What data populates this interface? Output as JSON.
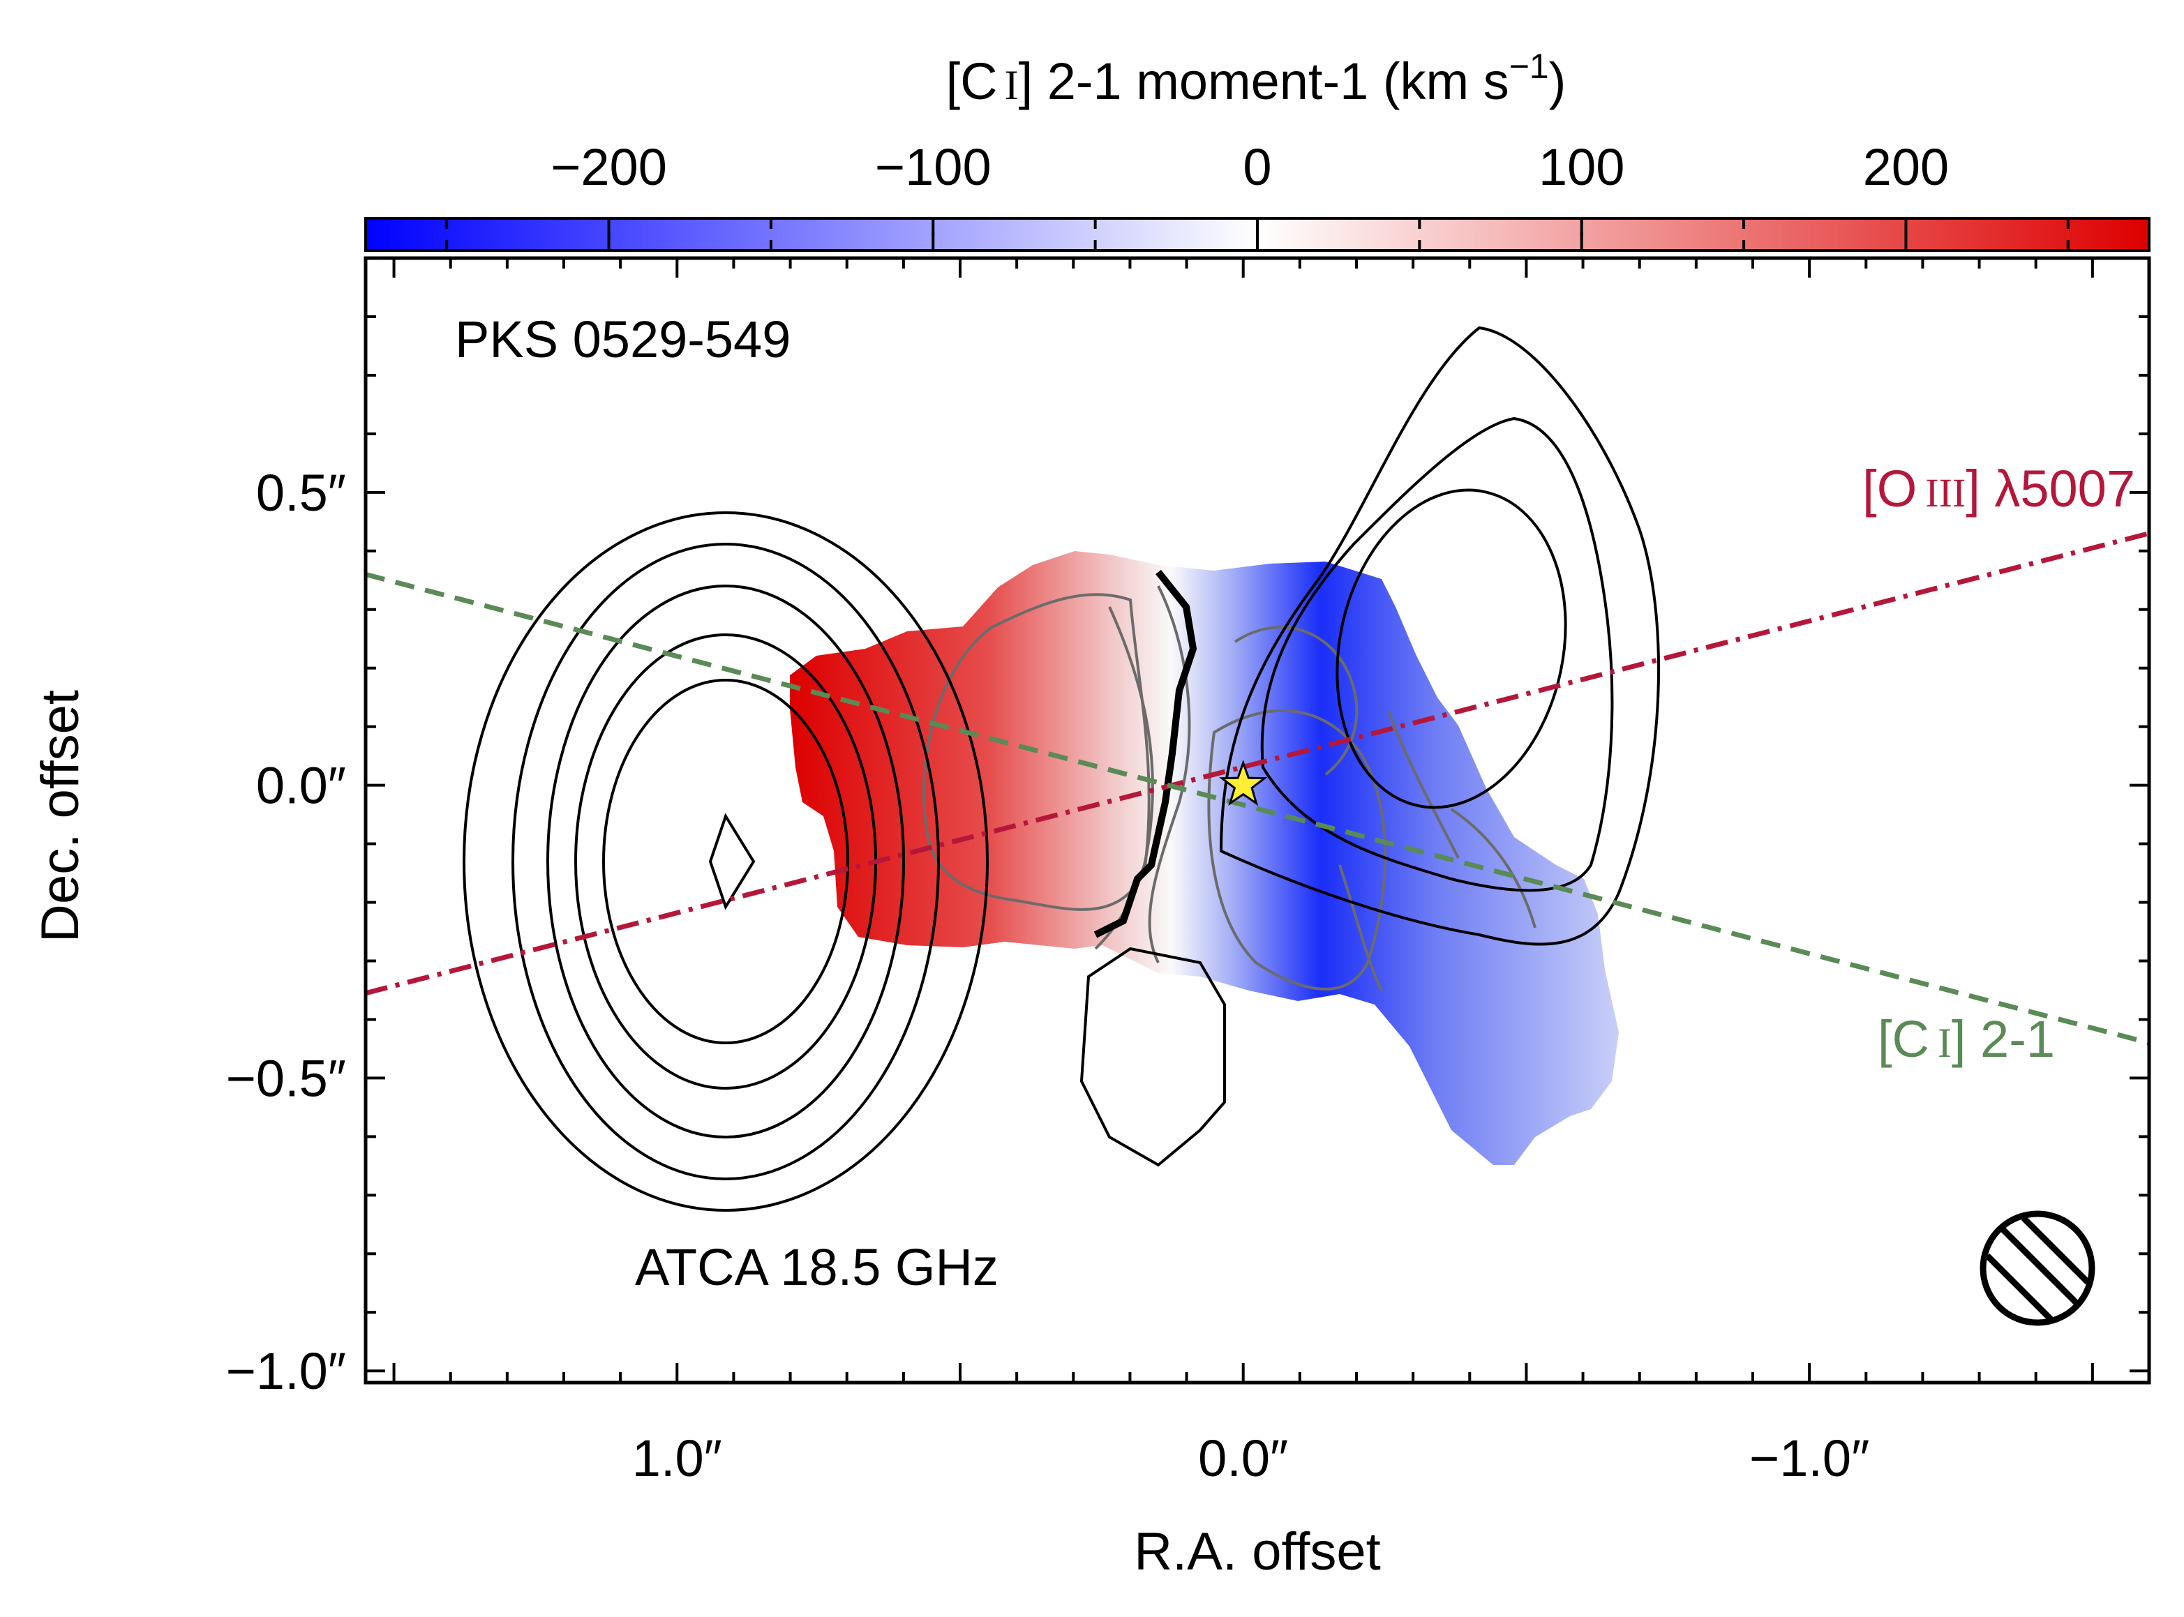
{
  "chart_data": {
    "type": "heatmap",
    "title": "",
    "source_label": "PKS 0529-549",
    "contour_label": "ATCA 18.5 GHz",
    "xlabel": "R.A. offset",
    "ylabel": "Dec. offset",
    "xlim": [
      1.55,
      -1.6
    ],
    "ylim": [
      -1.02,
      0.9
    ],
    "x_ticks": [
      1.0,
      0.0,
      -1.0
    ],
    "x_tick_labels": [
      "1.0″",
      "0.0″",
      "−1.0″"
    ],
    "y_ticks": [
      0.5,
      0.0,
      -0.5,
      -1.0
    ],
    "y_tick_labels": [
      "0.5″",
      "0.0″",
      "−0.5″",
      "−1.0″"
    ],
    "colorbar": {
      "label_main": "[C",
      "label_ion": "I",
      "label_rest": "] 2-1 moment-1 (km s",
      "label_exp": "−1",
      "label_close": ")",
      "range": [
        -275,
        275
      ],
      "ticks": [
        -200,
        -100,
        0,
        100,
        200
      ],
      "tick_labels": [
        "−200",
        "−100",
        "0",
        "100",
        "200"
      ],
      "colors": {
        "min": "#0000ff",
        "mid": "#ffffff",
        "max": "#dd0000"
      }
    },
    "series": [
      {
        "name": "[O III] λ5007",
        "label_pre": "[O",
        "label_ion": "III",
        "label_post": "] λ5007",
        "style": "dash-dot",
        "color": "#b5173a",
        "x": [
          1.55,
          -1.6
        ],
        "y": [
          -0.355,
          0.43
        ]
      },
      {
        "name": "[C I] 2-1",
        "label_pre": "[C",
        "label_ion": "I",
        "label_post": "] 2-1",
        "style": "dashed",
        "color": "#5a8a55",
        "x": [
          1.55,
          -1.6
        ],
        "y": [
          0.36,
          -0.44
        ]
      }
    ],
    "nucleus": {
      "x": 0.0,
      "y": 0.0,
      "marker": "star",
      "color": "#ffee33"
    },
    "beam": "bottom-right"
  }
}
